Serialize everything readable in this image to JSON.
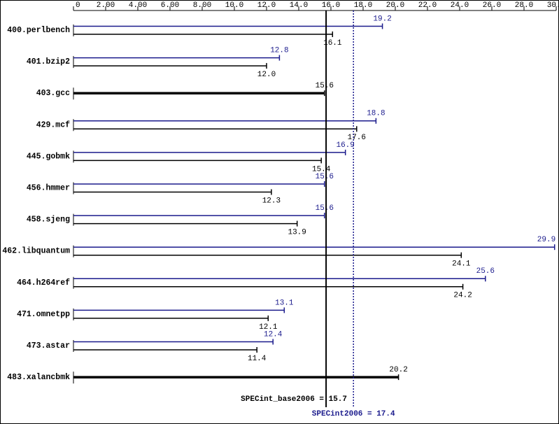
{
  "chart_data": {
    "type": "bar",
    "orientation": "horizontal",
    "categories": [
      "400.perlbench",
      "401.bzip2",
      "403.gcc",
      "429.mcf",
      "445.gobmk",
      "456.hmmer",
      "458.sjeng",
      "462.libquantum",
      "464.h264ref",
      "471.omnetpp",
      "473.astar",
      "483.xalancbmk"
    ],
    "series": [
      {
        "color": "#1a1a8c",
        "values": [
          19.2,
          12.8,
          null,
          18.8,
          16.9,
          15.6,
          15.6,
          29.9,
          25.6,
          13.1,
          12.4,
          null
        ],
        "value_labels": [
          "19.2",
          "12.8",
          null,
          "18.8",
          "16.9",
          "15.6",
          "15.6",
          "29.9",
          "25.6",
          "13.1",
          "12.4",
          null
        ]
      },
      {
        "color": "#000000",
        "values": [
          16.1,
          12.0,
          15.6,
          17.6,
          15.4,
          12.3,
          13.9,
          24.1,
          24.2,
          12.1,
          11.4,
          20.2
        ],
        "value_labels": [
          "16.1",
          "12.0",
          "15.6",
          "17.6",
          "15.4",
          "12.3",
          "13.9",
          "24.1",
          "24.2",
          "12.1",
          "11.4",
          "20.2"
        ]
      }
    ],
    "reference_lines": [
      {
        "value": 15.7,
        "label": "SPECint_base2006 = 15.7",
        "color": "#000000",
        "style": "solid"
      },
      {
        "value": 17.4,
        "label": "SPECint2006 = 17.4",
        "color": "#1a1a8c",
        "style": "dotted"
      }
    ],
    "xlim": [
      0,
      30
    ],
    "xticks": [
      0,
      {
        "value": 2,
        "label": "2.00"
      },
      {
        "value": 4,
        "label": "4.00"
      },
      {
        "value": 6,
        "label": "6.00"
      },
      {
        "value": 8,
        "label": "8.00"
      },
      {
        "value": 10,
        "label": "10.0"
      },
      {
        "value": 12,
        "label": "12.0"
      },
      {
        "value": 14,
        "label": "14.0"
      },
      {
        "value": 16,
        "label": "16.0"
      },
      {
        "value": 18,
        "label": "18.0"
      },
      {
        "value": 20,
        "label": "20.0"
      },
      {
        "value": 22,
        "label": "22.0"
      },
      {
        "value": 24,
        "label": "24.0"
      },
      {
        "value": 26,
        "label": "26.0"
      },
      {
        "value": 28,
        "label": "28.0"
      },
      {
        "value": 30,
        "label": "30.0"
      }
    ]
  }
}
